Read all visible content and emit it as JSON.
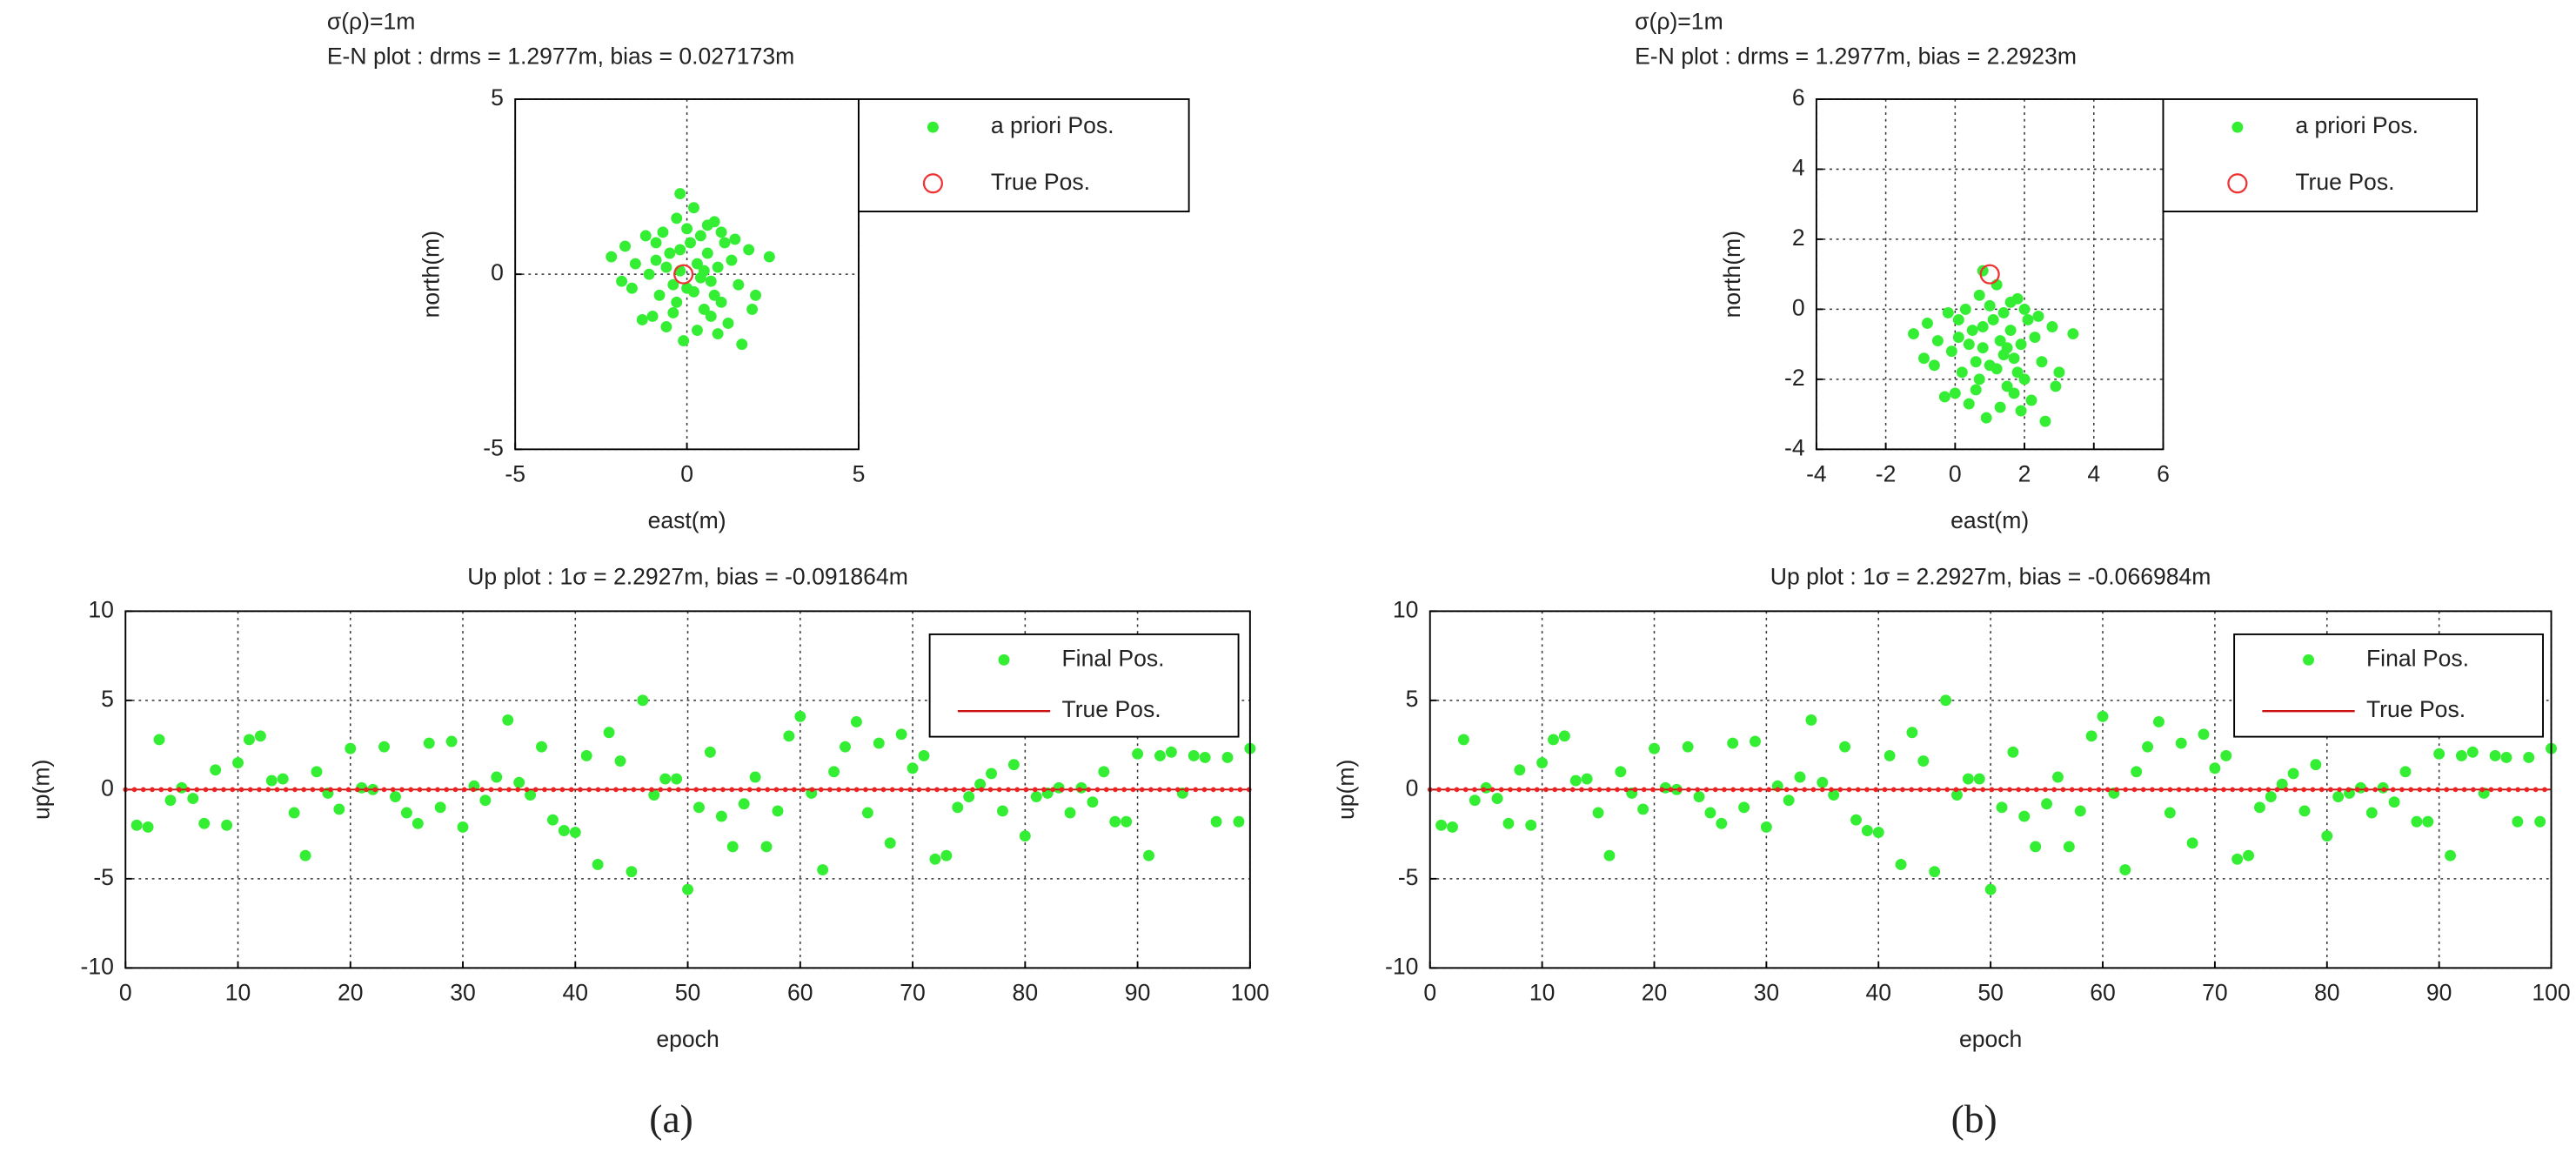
{
  "chart_data": [
    {
      "type": "scatter",
      "title": [
        "σ(ρ)=1m",
        "E-N plot : drms = 1.2977m, bias = 0.027173m"
      ],
      "xlabel": "east(m)",
      "ylabel": "north(m)",
      "xlim": [
        -5,
        5
      ],
      "ylim": [
        -5,
        5
      ],
      "xticks": [
        -5,
        0,
        5
      ],
      "yticks": [
        -5,
        0,
        5
      ],
      "grid": true,
      "legend": "outside-top-right",
      "series": [
        {
          "name": "a priori Pos.",
          "color": "#33ee33",
          "marker": "dot",
          "x": [
            -0.2,
            -2.2,
            -1.8,
            -1.5,
            -1.3,
            -1.0,
            -0.9,
            -0.7,
            -0.5,
            -0.4,
            -0.3,
            -0.2,
            0,
            0.1,
            0.2,
            0.3,
            0.4,
            0.5,
            0.6,
            0.7,
            0.8,
            0.9,
            1.0,
            1.1,
            1.2,
            1.3,
            1.5,
            1.6,
            1.8,
            2.0,
            2.4,
            -1.1,
            -0.8,
            -0.6,
            -0.1,
            0.3,
            0.7,
            1.0,
            -1.6,
            -0.3,
            0.2,
            0.5,
            -0.9,
            1.4,
            -0.4,
            0.0,
            0.8,
            -1.2,
            0.4,
            -0.6,
            1.9,
            0.9,
            -0.2,
            0.6,
            -1.9
          ],
          "values": [
            2.3,
            0.5,
            0.8,
            0.3,
            -1.3,
            -1.2,
            0.9,
            1.2,
            0.6,
            -0.3,
            -0.8,
            0.1,
            1.3,
            0.9,
            -0.5,
            0.3,
            1.1,
            -1.0,
            0.6,
            -0.2,
            1.5,
            0.2,
            -0.8,
            0.9,
            -1.4,
            0.4,
            -0.3,
            -2.0,
            0.7,
            -0.6,
            0.5,
            0.0,
            -0.6,
            -1.5,
            -1.9,
            -1.6,
            -1.2,
            1.2,
            -0.4,
            1.6,
            1.9,
            0.1,
            0.4,
            1.0,
            -1.1,
            -0.4,
            -0.6,
            1.1,
            -0.1,
            0.2,
            -1.0,
            -1.7,
            0.7,
            1.4,
            -0.2
          ]
        },
        {
          "name": "True Pos.",
          "color": "#ee3333",
          "marker": "circle",
          "x": [
            -0.1
          ],
          "values": [
            0
          ]
        }
      ]
    },
    {
      "type": "scatter",
      "title": [
        "σ(ρ)=1m",
        "E-N plot : drms = 1.2977m, bias = 2.2923m"
      ],
      "xlabel": "east(m)",
      "ylabel": "north(m)",
      "xlim": [
        -4,
        6
      ],
      "ylim": [
        -4,
        6
      ],
      "xticks": [
        -4,
        -2,
        0,
        2,
        4,
        6
      ],
      "yticks": [
        -4,
        -2,
        0,
        2,
        4,
        6
      ],
      "grid": true,
      "legend": "outside-top-right",
      "series": [
        {
          "name": "a priori Pos.",
          "color": "#33ee33",
          "marker": "dot",
          "x": [
            0.8,
            -1.2,
            -0.8,
            -0.5,
            -0.3,
            0,
            0.1,
            0.3,
            0.5,
            0.6,
            0.7,
            0.8,
            1.0,
            1.1,
            1.2,
            1.3,
            1.4,
            1.5,
            1.6,
            1.7,
            1.8,
            1.9,
            2.0,
            2.1,
            2.2,
            2.3,
            2.5,
            2.6,
            2.8,
            3.0,
            3.4,
            -0.1,
            0.2,
            0.4,
            0.9,
            1.3,
            1.7,
            2.0,
            -0.6,
            0.7,
            1.2,
            1.5,
            0.1,
            2.4,
            0.6,
            1.0,
            1.8,
            -0.2,
            1.4,
            0.4,
            2.9,
            1.9,
            0.8,
            1.6,
            -0.9
          ],
          "values": [
            1.1,
            -0.7,
            -0.4,
            -0.9,
            -2.5,
            -2.4,
            -0.3,
            0,
            -0.6,
            -1.5,
            -2.0,
            -1.1,
            0.1,
            -0.3,
            -1.7,
            -0.9,
            -0.1,
            -2.2,
            -0.6,
            -1.4,
            0.3,
            -1.0,
            -2.0,
            -0.3,
            -2.6,
            -0.8,
            -1.5,
            -3.2,
            -0.5,
            -1.8,
            -0.7,
            -1.2,
            -1.8,
            -2.7,
            -3.1,
            -2.8,
            -2.4,
            0,
            -1.6,
            0.4,
            0.7,
            -1.1,
            -0.8,
            -0.2,
            -2.3,
            -1.6,
            -1.8,
            -0.1,
            -1.3,
            -1.0,
            -2.2,
            -2.9,
            -0.5,
            0.2,
            -1.4
          ]
        },
        {
          "name": "True Pos.",
          "color": "#ee3333",
          "marker": "circle",
          "x": [
            1
          ],
          "values": [
            1
          ]
        }
      ]
    },
    {
      "type": "scatter",
      "title": [
        "Up plot : 1σ = 2.2927m,  bias = -0.091864m"
      ],
      "xlabel": "epoch",
      "ylabel": "up(m)",
      "caption": "(a)",
      "xlim": [
        0,
        100
      ],
      "ylim": [
        -10,
        10
      ],
      "xticks": [
        0,
        10,
        20,
        30,
        40,
        50,
        60,
        70,
        80,
        90,
        100
      ],
      "yticks": [
        -10,
        -5,
        0,
        5,
        10
      ],
      "grid": true,
      "legend": "top-right",
      "series": [
        {
          "name": "Final Pos.",
          "color": "#33ee33",
          "marker": "dot",
          "x": [
            1,
            2,
            3,
            4,
            5,
            6,
            7,
            8,
            9,
            10,
            11,
            12,
            13,
            14,
            15,
            16,
            17,
            18,
            19,
            20,
            21,
            22,
            23,
            24,
            25,
            26,
            27,
            28,
            29,
            30,
            31,
            32,
            33,
            34,
            35,
            36,
            37,
            38,
            39,
            40,
            41,
            42,
            43,
            44,
            45,
            46,
            47,
            48,
            49,
            50,
            51,
            52,
            53,
            54,
            55,
            56,
            57,
            58,
            59,
            60,
            61,
            62,
            63,
            64,
            65,
            66,
            67,
            68,
            69,
            70,
            71,
            72,
            73,
            74,
            75,
            76,
            77,
            78,
            79,
            80,
            81,
            82,
            83,
            84,
            85,
            86,
            87,
            88,
            89,
            90,
            91,
            92,
            93,
            94,
            95,
            96,
            97,
            98,
            99,
            100
          ],
          "values": [
            -2.0,
            -2.1,
            2.8,
            -0.6,
            0.1,
            -0.5,
            -1.9,
            1.1,
            -2.0,
            1.5,
            2.8,
            3.0,
            0.5,
            0.6,
            -1.3,
            -3.7,
            1.0,
            -0.2,
            -1.1,
            2.3,
            0.1,
            0,
            2.4,
            -0.4,
            -1.3,
            -1.9,
            2.6,
            -1.0,
            2.7,
            -2.1,
            0.2,
            -0.6,
            0.7,
            3.9,
            0.4,
            -0.3,
            2.4,
            -1.7,
            -2.3,
            -2.4,
            1.9,
            -4.2,
            3.2,
            1.6,
            -4.6,
            5.0,
            -0.3,
            0.6,
            0.6,
            -5.6,
            -1.0,
            2.1,
            -1.5,
            -3.2,
            -0.8,
            0.7,
            -3.2,
            -1.2,
            3.0,
            4.1,
            -0.2,
            -4.5,
            1.0,
            2.4,
            3.8,
            -1.3,
            2.6,
            -3.0,
            3.1,
            1.2,
            1.9,
            -3.9,
            -3.7,
            -1.0,
            -0.4,
            0.3,
            0.9,
            -1.2,
            1.4,
            -2.6,
            -0.4,
            -0.2,
            0.1,
            -1.3,
            0.1,
            -0.7,
            1.0,
            -1.8,
            -1.8,
            2.0,
            -3.7,
            1.9,
            2.1,
            -0.2,
            1.9,
            1.8,
            -1.8,
            1.8,
            -1.8,
            2.3
          ]
        },
        {
          "name": "True Pos.",
          "color": "#cc1111",
          "marker": "line",
          "x": [
            0,
            100
          ],
          "values": [
            0,
            0
          ]
        }
      ]
    },
    {
      "type": "scatter",
      "title": [
        "Up plot : 1σ = 2.2927m,  bias = -0.066984m"
      ],
      "xlabel": "epoch",
      "ylabel": "up(m)",
      "caption": "(b)",
      "xlim": [
        0,
        100
      ],
      "ylim": [
        -10,
        10
      ],
      "xticks": [
        0,
        10,
        20,
        30,
        40,
        50,
        60,
        70,
        80,
        90,
        100
      ],
      "yticks": [
        -10,
        -5,
        0,
        5,
        10
      ],
      "grid": true,
      "legend": "top-right",
      "series": [
        {
          "name": "Final Pos.",
          "color": "#33ee33",
          "marker": "dot",
          "x": [
            1,
            2,
            3,
            4,
            5,
            6,
            7,
            8,
            9,
            10,
            11,
            12,
            13,
            14,
            15,
            16,
            17,
            18,
            19,
            20,
            21,
            22,
            23,
            24,
            25,
            26,
            27,
            28,
            29,
            30,
            31,
            32,
            33,
            34,
            35,
            36,
            37,
            38,
            39,
            40,
            41,
            42,
            43,
            44,
            45,
            46,
            47,
            48,
            49,
            50,
            51,
            52,
            53,
            54,
            55,
            56,
            57,
            58,
            59,
            60,
            61,
            62,
            63,
            64,
            65,
            66,
            67,
            68,
            69,
            70,
            71,
            72,
            73,
            74,
            75,
            76,
            77,
            78,
            79,
            80,
            81,
            82,
            83,
            84,
            85,
            86,
            87,
            88,
            89,
            90,
            91,
            92,
            93,
            94,
            95,
            96,
            97,
            98,
            99,
            100
          ],
          "values": [
            -2.0,
            -2.1,
            2.8,
            -0.6,
            0.1,
            -0.5,
            -1.9,
            1.1,
            -2.0,
            1.5,
            2.8,
            3.0,
            0.5,
            0.6,
            -1.3,
            -3.7,
            1.0,
            -0.2,
            -1.1,
            2.3,
            0.1,
            0,
            2.4,
            -0.4,
            -1.3,
            -1.9,
            2.6,
            -1.0,
            2.7,
            -2.1,
            0.2,
            -0.6,
            0.7,
            3.9,
            0.4,
            -0.3,
            2.4,
            -1.7,
            -2.3,
            -2.4,
            1.9,
            -4.2,
            3.2,
            1.6,
            -4.6,
            5.0,
            -0.3,
            0.6,
            0.6,
            -5.6,
            -1.0,
            2.1,
            -1.5,
            -3.2,
            -0.8,
            0.7,
            -3.2,
            -1.2,
            3.0,
            4.1,
            -0.2,
            -4.5,
            1.0,
            2.4,
            3.8,
            -1.3,
            2.6,
            -3.0,
            3.1,
            1.2,
            1.9,
            -3.9,
            -3.7,
            -1.0,
            -0.4,
            0.3,
            0.9,
            -1.2,
            1.4,
            -2.6,
            -0.4,
            -0.2,
            0.1,
            -1.3,
            0.1,
            -0.7,
            1.0,
            -1.8,
            -1.8,
            2.0,
            -3.7,
            1.9,
            2.1,
            -0.2,
            1.9,
            1.8,
            -1.8,
            1.8,
            -1.8,
            2.3
          ]
        },
        {
          "name": "True Pos.",
          "color": "#cc1111",
          "marker": "line",
          "x": [
            0,
            100
          ],
          "values": [
            0,
            0
          ]
        }
      ]
    }
  ]
}
